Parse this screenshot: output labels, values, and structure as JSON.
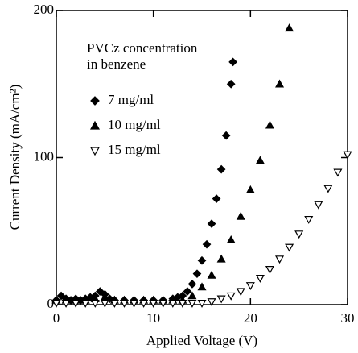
{
  "chart_data": {
    "type": "scatter",
    "xlabel": "Applied Voltage (V)",
    "ylabel": "Current Density (mA/cm²)",
    "legend_title": [
      "PVCz concentration",
      " in benzene"
    ],
    "xlim": [
      0,
      30
    ],
    "xticks": [
      0,
      10,
      20,
      30
    ],
    "ylim": [
      0,
      200
    ],
    "yticks": [
      0,
      100,
      200
    ],
    "series": [
      {
        "name": "7 mg/ml",
        "marker": "diamond",
        "color": "#000000",
        "x": [
          0,
          0.5,
          1,
          1.5,
          2,
          2.5,
          3,
          3.5,
          4,
          4.5,
          5,
          5.5,
          6,
          7,
          8,
          9,
          10,
          11,
          12,
          12.5,
          13,
          13.5,
          14,
          14.5,
          15,
          15.5,
          16,
          16.5,
          17,
          17.5,
          18,
          18.2
        ],
        "values": [
          3,
          6,
          4,
          3,
          4,
          3,
          4,
          5,
          6,
          9,
          7,
          4,
          3,
          3,
          3,
          3,
          3,
          3,
          4,
          5,
          6,
          9,
          14,
          21,
          30,
          41,
          55,
          72,
          92,
          115,
          150,
          165
        ]
      },
      {
        "name": "10 mg/ml",
        "marker": "triangle",
        "color": "#000000",
        "x": [
          0,
          1,
          2,
          3,
          4,
          5,
          6,
          7,
          8,
          9,
          10,
          11,
          12,
          13,
          14,
          15,
          16,
          17,
          18,
          19,
          20,
          21,
          22,
          23,
          24
        ],
        "values": [
          3,
          3,
          3,
          3,
          4,
          5,
          3,
          3,
          3,
          3,
          3,
          3,
          3,
          3,
          6,
          12,
          20,
          31,
          44,
          60,
          78,
          98,
          122,
          150,
          188
        ]
      },
      {
        "name": "15 mg/ml",
        "marker": "triangle-open",
        "color": "#000000",
        "x": [
          0,
          1,
          2,
          3,
          4,
          5,
          6,
          7,
          8,
          9,
          10,
          11,
          12,
          13,
          14,
          15,
          16,
          17,
          18,
          19,
          20,
          21,
          22,
          23,
          24,
          25,
          26,
          27,
          28,
          29,
          30
        ],
        "values": [
          1,
          1,
          1,
          1,
          1,
          1,
          1,
          1,
          1,
          1,
          1,
          1,
          1,
          1,
          1,
          1,
          2,
          4,
          6,
          9,
          13,
          18,
          24,
          31,
          39,
          48,
          58,
          68,
          79,
          90,
          102
        ]
      }
    ]
  }
}
